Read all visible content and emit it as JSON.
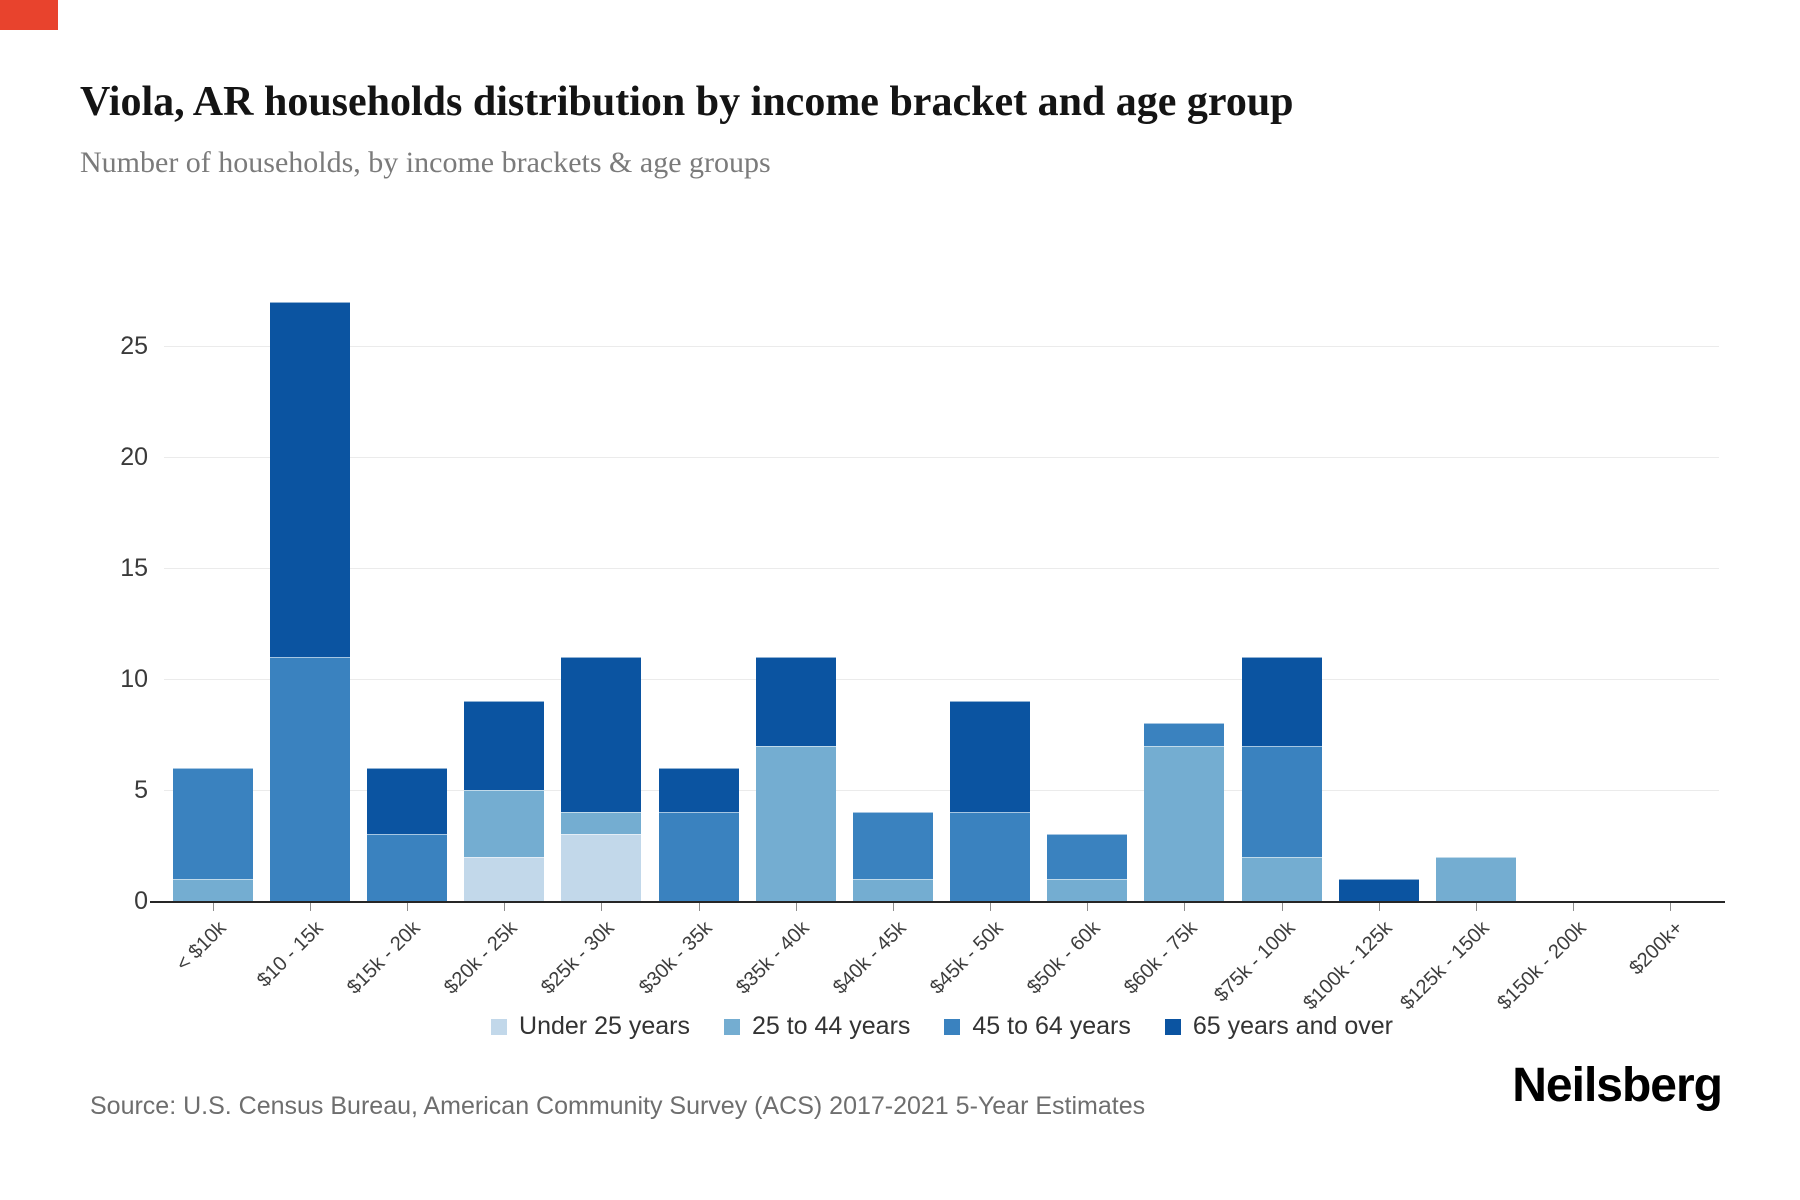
{
  "header": {
    "title": "Viola, AR households distribution by income bracket and age group",
    "subtitle": "Number of households, by income brackets & age groups"
  },
  "chart_data": {
    "type": "bar",
    "stacked": true,
    "title": "Viola, AR households distribution by income bracket and age group",
    "subtitle": "Number of households, by income brackets & age groups",
    "xlabel": "",
    "ylabel": "",
    "ylim": [
      0,
      28
    ],
    "yticks": [
      0,
      5,
      10,
      15,
      20,
      25
    ],
    "grid": true,
    "legend_position": "bottom",
    "categories": [
      "< $10k",
      "$10 - 15k",
      "$15k - 20k",
      "$20k - 25k",
      "$25k - 30k",
      "$30k - 35k",
      "$35k - 40k",
      "$40k - 45k",
      "$45k - 50k",
      "$50k - 60k",
      "$60k - 75k",
      "$75k - 100k",
      "$100k - 125k",
      "$125k - 150k",
      "$150k - 200k",
      "$200k+"
    ],
    "series": [
      {
        "name": "Under 25 years",
        "color": "#c2d8ea",
        "values": [
          0,
          0,
          0,
          2,
          3,
          0,
          0,
          0,
          0,
          0,
          0,
          0,
          0,
          0,
          0,
          0
        ]
      },
      {
        "name": "25 to 44 years",
        "color": "#74add1",
        "values": [
          1,
          0,
          0,
          3,
          1,
          0,
          7,
          1,
          0,
          1,
          7,
          2,
          0,
          2,
          0,
          0
        ]
      },
      {
        "name": "45 to 64 years",
        "color": "#3a82bf",
        "values": [
          5,
          11,
          3,
          0,
          0,
          4,
          0,
          3,
          4,
          2,
          1,
          5,
          0,
          0,
          0,
          0
        ]
      },
      {
        "name": "65 years and over",
        "color": "#0b54a1",
        "values": [
          0,
          16,
          3,
          4,
          7,
          2,
          4,
          0,
          5,
          0,
          0,
          4,
          1,
          0,
          0,
          0
        ]
      }
    ],
    "totals": [
      6,
      27,
      6,
      9,
      11,
      6,
      11,
      4,
      9,
      3,
      8,
      11,
      1,
      2,
      0,
      0
    ]
  },
  "footer": {
    "source": "Source: U.S. Census Bureau, American Community Survey (ACS) 2017-2021 5-Year Estimates",
    "logo": "Neilsberg"
  }
}
